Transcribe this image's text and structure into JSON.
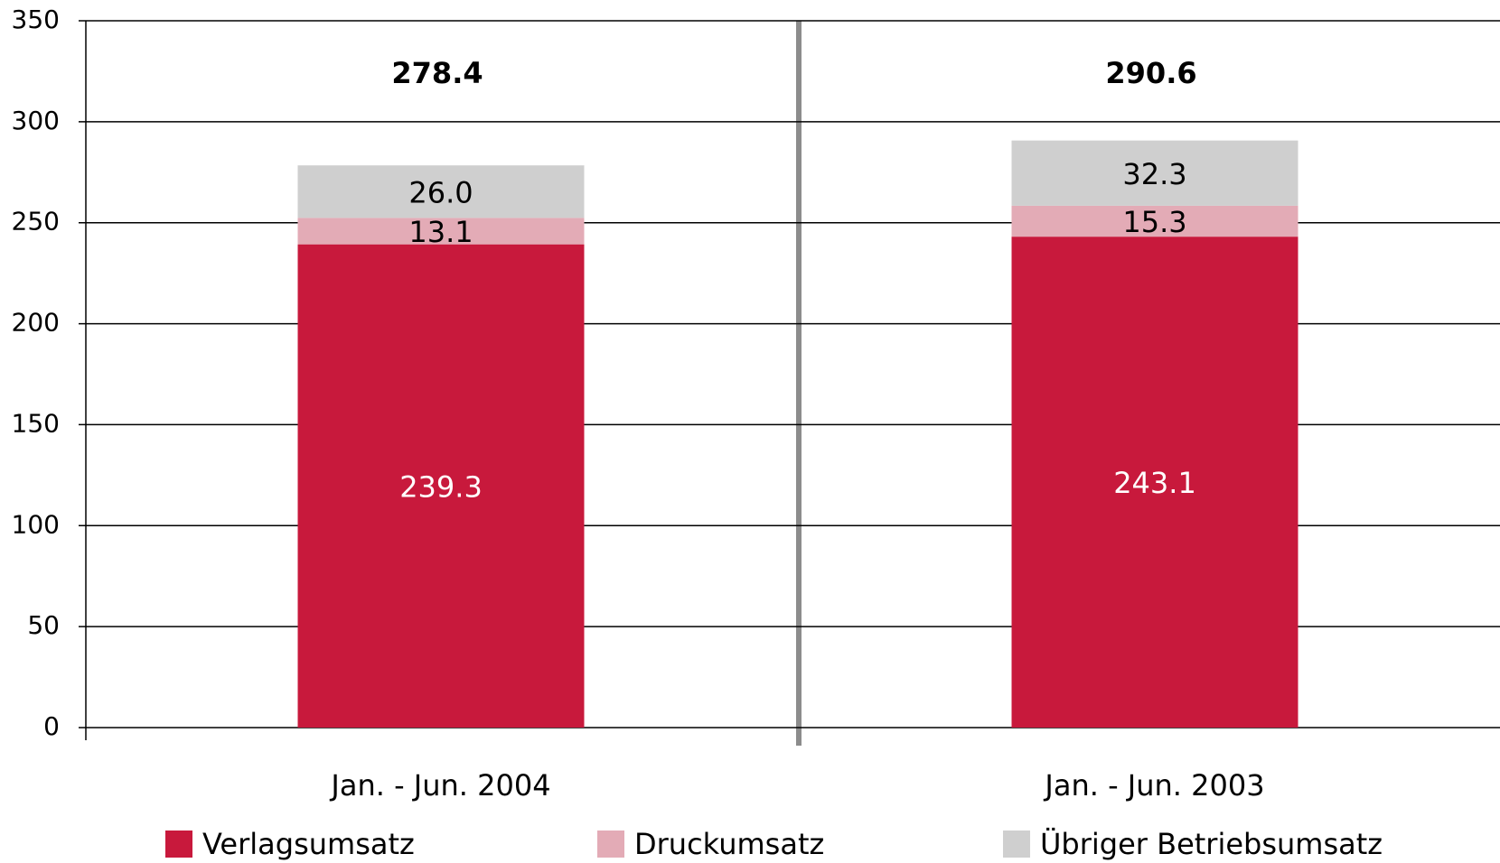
{
  "chart_data": {
    "type": "stacked_bar",
    "categories": [
      "Jan. - Jun. 2004",
      "Jan. - Jun. 2003"
    ],
    "series": [
      {
        "name": "Verlagsumsatz",
        "color": "#c8193c",
        "values": [
          239.3,
          243.1
        ],
        "value_labels": [
          "239.3",
          "243.1"
        ]
      },
      {
        "name": "Druckumsatz",
        "color": "#e3abb6",
        "values": [
          13.1,
          15.3
        ],
        "value_labels": [
          "13.1",
          "15.3"
        ]
      },
      {
        "name": "Übriger Betriebsumsatz",
        "color": "#cfcfcf",
        "values": [
          26.0,
          32.3
        ],
        "value_labels": [
          "26.0",
          "32.3"
        ]
      }
    ],
    "totals": [
      278.4,
      290.6
    ],
    "total_labels": [
      "278.4",
      "290.6"
    ],
    "ylim": [
      0,
      350
    ],
    "yticks": [
      0,
      50,
      100,
      150,
      200,
      250,
      300,
      350
    ],
    "grid": true
  }
}
